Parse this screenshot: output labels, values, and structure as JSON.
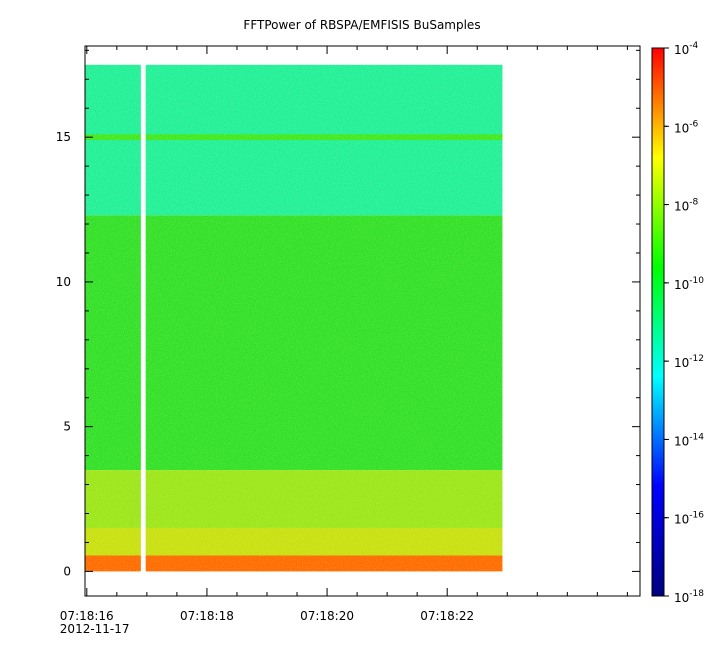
{
  "chart_data": {
    "type": "heatmap",
    "title": "FFTPower of RBSPA/EMFISIS  BuSamples",
    "xlabel": "",
    "ylabel": "",
    "x_ticks": [
      {
        "value": 16,
        "label": "07:18:16",
        "sublabel": "2012-11-17"
      },
      {
        "value": 18,
        "label": "07:18:18"
      },
      {
        "value": 20,
        "label": "07:18:20"
      },
      {
        "value": 22,
        "label": "07:18:22"
      }
    ],
    "x_minor_ticks": [
      16.5,
      17,
      17.5,
      18.5,
      19,
      19.5,
      20.5,
      21,
      21.5,
      22.5,
      23,
      23.5,
      24,
      24.5,
      25
    ],
    "xlim": [
      15.97,
      25.21
    ],
    "y_ticks": [
      {
        "value": 0,
        "label": "0"
      },
      {
        "value": 5,
        "label": "5"
      },
      {
        "value": 10,
        "label": "10"
      },
      {
        "value": 15,
        "label": "15"
      }
    ],
    "y_minor_ticks": [
      1,
      2,
      3,
      4,
      6,
      7,
      8,
      9,
      11,
      12,
      13,
      14,
      16,
      17,
      18
    ],
    "ylim": [
      -0.85,
      18.15
    ],
    "data_extent": {
      "x": [
        15.97,
        22.92
      ],
      "y": [
        0,
        17.5
      ]
    },
    "data_gap_x": [
      16.9,
      16.98
    ],
    "colorbar": {
      "scale": "log",
      "range": [
        1e-18,
        0.0001
      ],
      "ticks": [
        {
          "base": "10",
          "exp": "-4",
          "value": 0.0001
        },
        {
          "base": "10",
          "exp": "-6",
          "value": 1e-06
        },
        {
          "base": "10",
          "exp": "-8",
          "value": 1e-08
        },
        {
          "base": "10",
          "exp": "-10",
          "value": 1e-10
        },
        {
          "base": "10",
          "exp": "-12",
          "value": 1e-12
        },
        {
          "base": "10",
          "exp": "-14",
          "value": 1e-14
        },
        {
          "base": "10",
          "exp": "-16",
          "value": 1e-16
        },
        {
          "base": "10",
          "exp": "-18",
          "value": 1e-18
        }
      ],
      "colors": [
        "#00007f",
        "#0000ff",
        "#00ffff",
        "#00ff00",
        "#ffff00",
        "#ff0000"
      ]
    },
    "power_bands": [
      {
        "y": [
          12.3,
          17.5
        ],
        "log_power": -13.2,
        "color": "#1ff09a"
      },
      {
        "y": [
          14.9,
          15.1
        ],
        "log_power": -10.5,
        "color": "#40e820"
      },
      {
        "y": [
          3.5,
          12.3
        ],
        "log_power": -10.2,
        "color": "#30e028"
      },
      {
        "y": [
          1.5,
          3.5
        ],
        "log_power": -9.4,
        "color": "#9be61a"
      },
      {
        "y": [
          0.55,
          1.5
        ],
        "log_power": -8.7,
        "color": "#c8e010"
      },
      {
        "y": [
          0,
          0.55
        ],
        "log_power": -6.3,
        "color": "#ff6a00"
      }
    ]
  }
}
